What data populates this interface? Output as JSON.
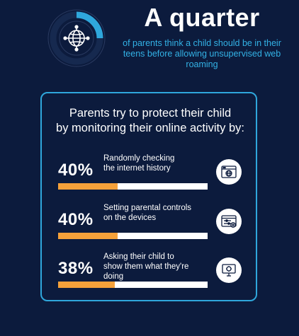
{
  "header": {
    "headline": "A quarter",
    "subtitle": "of parents think a child should be in their teens before allowing unsupervised web roaming",
    "quarter_fraction": 0.25,
    "globe_icon": "globe-icon"
  },
  "panel": {
    "title_line1": "Parents try to protect their child",
    "title_line2": "by monitoring their online activity by:",
    "stats": [
      {
        "percent": "40%",
        "value": 0.4,
        "line1": "Randomly checking",
        "line2": "the internet history",
        "icon": "browser-globe-icon"
      },
      {
        "percent": "40%",
        "value": 0.4,
        "line1": "Setting parental controls",
        "line2": "on the devices",
        "icon": "settings-window-icon"
      },
      {
        "percent": "38%",
        "value": 0.38,
        "line1": "Asking their child to",
        "line2": "show them what they're doing",
        "icon": "monitor-tools-icon"
      }
    ]
  },
  "colors": {
    "background": "#0c1b3d",
    "accent_blue": "#2fa7dc",
    "bar_fill": "#f5a13a",
    "bar_track": "#ffffff"
  }
}
